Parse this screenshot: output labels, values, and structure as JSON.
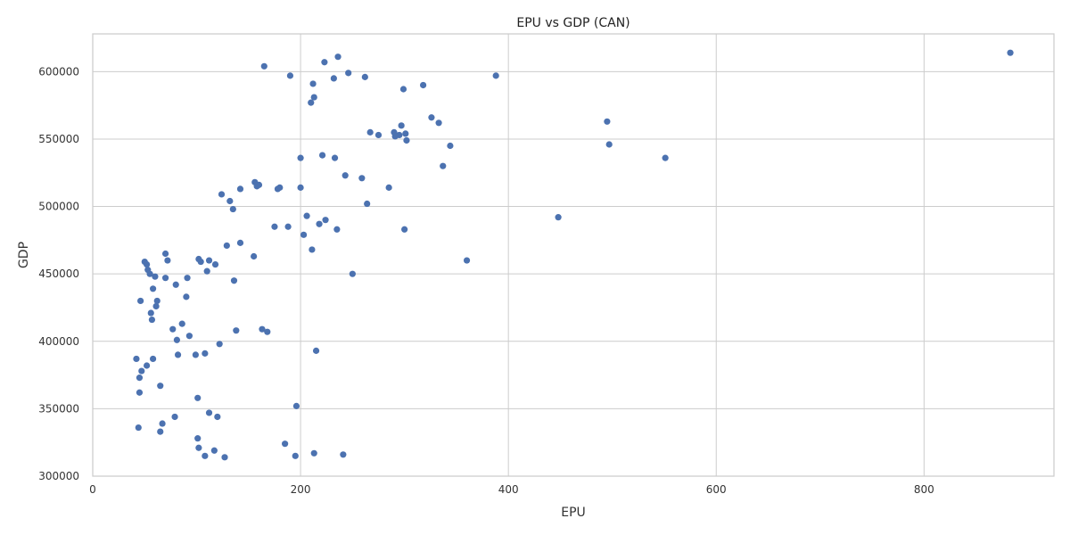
{
  "chart_data": {
    "type": "scatter",
    "title": "EPU vs GDP (CAN)",
    "xlabel": "EPU",
    "ylabel": "GDP",
    "xlim": [
      0,
      925
    ],
    "ylim": [
      300000,
      628000
    ],
    "xticks": [
      0,
      200,
      400,
      600,
      800
    ],
    "yticks": [
      300000,
      350000,
      400000,
      450000,
      500000,
      550000,
      600000
    ],
    "grid": true,
    "marker_color": "#4c72b0",
    "points": [
      [
        42,
        387000
      ],
      [
        44,
        336000
      ],
      [
        45,
        373000
      ],
      [
        45,
        362000
      ],
      [
        46,
        430000
      ],
      [
        47,
        378000
      ],
      [
        50,
        459000
      ],
      [
        52,
        457000
      ],
      [
        52,
        382000
      ],
      [
        53,
        453000
      ],
      [
        55,
        450000
      ],
      [
        56,
        421000
      ],
      [
        57,
        416000
      ],
      [
        58,
        387000
      ],
      [
        58,
        439000
      ],
      [
        60,
        448000
      ],
      [
        61,
        426000
      ],
      [
        62,
        430000
      ],
      [
        65,
        367000
      ],
      [
        65,
        333000
      ],
      [
        67,
        339000
      ],
      [
        70,
        465000
      ],
      [
        70,
        447000
      ],
      [
        72,
        460000
      ],
      [
        77,
        409000
      ],
      [
        79,
        344000
      ],
      [
        80,
        442000
      ],
      [
        81,
        401000
      ],
      [
        82,
        390000
      ],
      [
        86,
        413000
      ],
      [
        90,
        433000
      ],
      [
        91,
        447000
      ],
      [
        93,
        404000
      ],
      [
        99,
        390000
      ],
      [
        101,
        328000
      ],
      [
        101,
        358000
      ],
      [
        102,
        321000
      ],
      [
        102,
        461000
      ],
      [
        104,
        459000
      ],
      [
        108,
        315000
      ],
      [
        108,
        391000
      ],
      [
        110,
        452000
      ],
      [
        112,
        347000
      ],
      [
        112,
        460000
      ],
      [
        117,
        319000
      ],
      [
        118,
        457000
      ],
      [
        120,
        344000
      ],
      [
        122,
        398000
      ],
      [
        124,
        509000
      ],
      [
        127,
        314000
      ],
      [
        129,
        471000
      ],
      [
        132,
        504000
      ],
      [
        135,
        498000
      ],
      [
        136,
        445000
      ],
      [
        138,
        408000
      ],
      [
        142,
        473000
      ],
      [
        142,
        513000
      ],
      [
        155,
        463000
      ],
      [
        156,
        518000
      ],
      [
        158,
        515000
      ],
      [
        160,
        516000
      ],
      [
        163,
        409000
      ],
      [
        165,
        604000
      ],
      [
        168,
        407000
      ],
      [
        175,
        485000
      ],
      [
        178,
        513000
      ],
      [
        180,
        514000
      ],
      [
        185,
        324000
      ],
      [
        188,
        485000
      ],
      [
        190,
        597000
      ],
      [
        195,
        315000
      ],
      [
        196,
        352000
      ],
      [
        200,
        536000
      ],
      [
        200,
        514000
      ],
      [
        203,
        479000
      ],
      [
        206,
        493000
      ],
      [
        210,
        577000
      ],
      [
        211,
        468000
      ],
      [
        212,
        591000
      ],
      [
        213,
        581000
      ],
      [
        213,
        317000
      ],
      [
        215,
        393000
      ],
      [
        218,
        487000
      ],
      [
        221,
        538000
      ],
      [
        223,
        607000
      ],
      [
        224,
        490000
      ],
      [
        232,
        595000
      ],
      [
        233,
        536000
      ],
      [
        235,
        483000
      ],
      [
        236,
        611000
      ],
      [
        241,
        316000
      ],
      [
        243,
        523000
      ],
      [
        246,
        599000
      ],
      [
        250,
        450000
      ],
      [
        259,
        521000
      ],
      [
        262,
        596000
      ],
      [
        264,
        502000
      ],
      [
        267,
        555000
      ],
      [
        275,
        553000
      ],
      [
        285,
        514000
      ],
      [
        290,
        555000
      ],
      [
        291,
        552000
      ],
      [
        295,
        553000
      ],
      [
        297,
        560000
      ],
      [
        299,
        587000
      ],
      [
        300,
        483000
      ],
      [
        301,
        554000
      ],
      [
        302,
        549000
      ],
      [
        318,
        590000
      ],
      [
        326,
        566000
      ],
      [
        333,
        562000
      ],
      [
        337,
        530000
      ],
      [
        344,
        545000
      ],
      [
        360,
        460000
      ],
      [
        388,
        597000
      ],
      [
        448,
        492000
      ],
      [
        495,
        563000
      ],
      [
        497,
        546000
      ],
      [
        551,
        536000
      ],
      [
        883,
        614000
      ]
    ]
  }
}
